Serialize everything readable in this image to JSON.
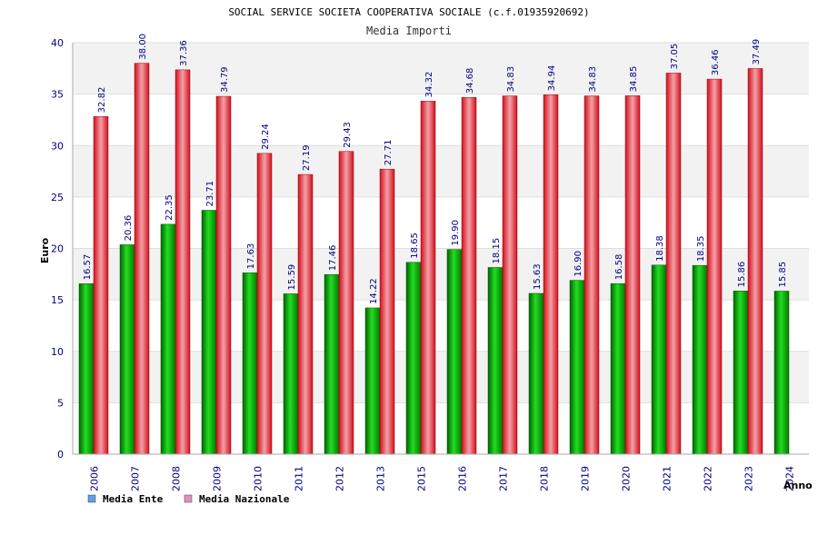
{
  "chart_data": {
    "type": "bar",
    "title": "SOCIAL SERVICE SOCIETA COOPERATIVA SOCIALE (c.f.01935920692)",
    "subtitle": "Media Importi",
    "xlabel": "Anno",
    "ylabel": "Euro",
    "ylim": [
      0,
      40
    ],
    "yticks": [
      0,
      5,
      10,
      15,
      20,
      25,
      30,
      35,
      40
    ],
    "grid": true,
    "legend_position": "bottom-left",
    "categories": [
      "2006",
      "2007",
      "2008",
      "2009",
      "2010",
      "2011",
      "2012",
      "2013",
      "2015",
      "2016",
      "2017",
      "2018",
      "2019",
      "2020",
      "2021",
      "2022",
      "2023",
      "2024"
    ],
    "series": [
      {
        "name": "Media Ente",
        "color": "#00b000",
        "legend_color": "#5aa0e6",
        "values": [
          16.57,
          20.36,
          22.35,
          23.71,
          17.63,
          15.59,
          17.46,
          14.22,
          18.65,
          19.9,
          18.15,
          15.63,
          16.9,
          16.58,
          18.38,
          18.35,
          15.86,
          15.85
        ],
        "labels": [
          "16.57",
          "20.36",
          "22.35",
          "23.71",
          "17.63",
          "15.59",
          "17.46",
          "14.22",
          "18.65",
          "19.90",
          "18.15",
          "15.63",
          "16.90",
          "16.58",
          "18.38",
          "18.35",
          "15.86",
          "15.85"
        ]
      },
      {
        "name": "Media Nazionale",
        "color": "#e8202a",
        "legend_color": "#e090c0",
        "values": [
          32.82,
          38.0,
          37.36,
          34.79,
          29.24,
          27.19,
          29.43,
          27.71,
          34.32,
          34.68,
          34.83,
          34.94,
          34.83,
          34.85,
          37.05,
          36.46,
          37.49,
          null
        ],
        "labels": [
          "32.82",
          "38.00",
          "37.36",
          "34.79",
          "29.24",
          "27.19",
          "29.43",
          "27.71",
          "34.32",
          "34.68",
          "34.83",
          "34.94",
          "34.83",
          "34.85",
          "37.05",
          "36.46",
          "37.49",
          null
        ]
      }
    ]
  }
}
